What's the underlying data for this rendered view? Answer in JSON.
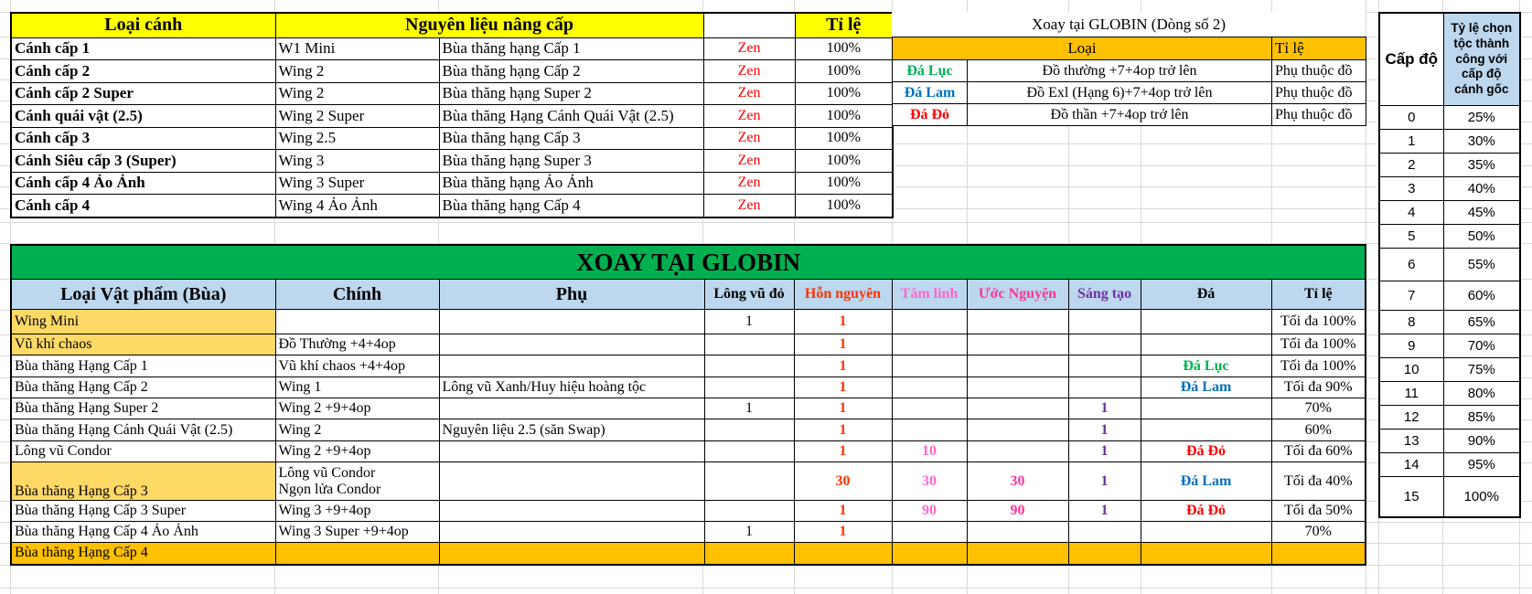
{
  "colors": {
    "yellow_header": "#FFFF00",
    "orange_header": "#FFC000",
    "green_title": "#00B050",
    "blue_header": "#BDD7EE",
    "row_highlight": "#FFD966",
    "zen_red": "#FF0000",
    "chaos_orange": "#FF3300",
    "spirit_pink": "#FF66CC",
    "wish_magenta": "#FF3399",
    "creation_purple": "#7030A0",
    "stone_green": "#00B050",
    "stone_blue": "#0070C0",
    "stone_red": "#FF0000"
  },
  "top_left_table": {
    "headers": {
      "type": "Loại cánh",
      "materials": "Nguyên liệu nâng cấp",
      "rate": "Tỉ lệ"
    },
    "rows": [
      {
        "wing": "Cánh cấp 1",
        "main": "W1 Mini",
        "charm": "Bùa thăng hạng Cấp 1",
        "currency": "Zen",
        "rate": "100%"
      },
      {
        "wing": "Cánh cấp 2",
        "main": "Wing 2",
        "charm": "Bùa thăng hạng Cấp 2",
        "currency": "Zen",
        "rate": "100%"
      },
      {
        "wing": "Cánh cấp 2 Super",
        "main": "Wing 2",
        "charm": "Bùa thăng hạng Super 2",
        "currency": "Zen",
        "rate": "100%"
      },
      {
        "wing": "Cánh quái vật (2.5)",
        "main": "Wing 2 Super",
        "charm": "Bùa thăng Hạng Cánh Quái Vật (2.5)",
        "currency": "Zen",
        "rate": "100%"
      },
      {
        "wing": "Cánh cấp 3",
        "main": "Wing 2.5",
        "charm": "Bùa thăng hạng Cấp 3",
        "currency": "Zen",
        "rate": "100%"
      },
      {
        "wing": "Cánh Siêu cấp 3 (Super)",
        "main": "Wing 3",
        "charm": "Bùa thăng hạng Super 3",
        "currency": "Zen",
        "rate": "100%"
      },
      {
        "wing": "Cánh cấp 4 Ảo Ảnh",
        "main": "Wing 3 Super",
        "charm": "Bùa thăng hạng Ảo Ảnh",
        "currency": "Zen",
        "rate": "100%"
      },
      {
        "wing": "Cánh cấp 4",
        "main": "Wing 4 Ảo Ảnh",
        "charm": "Bùa thăng hạng Cấp 4",
        "currency": "Zen",
        "rate": "100%"
      }
    ]
  },
  "top_right_table": {
    "title": "Xoay tại GLOBIN (Dòng số 2)",
    "headers": {
      "type": "Loại",
      "rate": "Tỉ lệ"
    },
    "rows": [
      {
        "stone": "Đá Lục",
        "stone_color": "#00B050",
        "requirement": "Đồ thường +7+4op trở lên",
        "rate": "Phụ thuộc đồ"
      },
      {
        "stone": "Đá Lam",
        "stone_color": "#0070C0",
        "requirement": "Đồ Exl (Hạng 6)+7+4op trở lên",
        "rate": "Phụ thuộc đồ"
      },
      {
        "stone": "Đá Đỏ",
        "stone_color": "#FF0000",
        "requirement": "Đồ thần +7+4op trở lên",
        "rate": "Phụ thuộc đồ"
      }
    ]
  },
  "level_table": {
    "headers": {
      "level": "Cấp độ",
      "rate": "Tỷ lệ chọn tộc thành công với cấp độ cánh gốc"
    },
    "rows": [
      {
        "level": "0",
        "rate": "25%"
      },
      {
        "level": "1",
        "rate": "30%"
      },
      {
        "level": "2",
        "rate": "35%"
      },
      {
        "level": "3",
        "rate": "40%"
      },
      {
        "level": "4",
        "rate": "45%"
      },
      {
        "level": "5",
        "rate": "50%"
      },
      {
        "level": "6",
        "rate": "55%"
      },
      {
        "level": "7",
        "rate": "60%"
      },
      {
        "level": "8",
        "rate": "65%"
      },
      {
        "level": "9",
        "rate": "70%"
      },
      {
        "level": "10",
        "rate": "75%"
      },
      {
        "level": "11",
        "rate": "80%"
      },
      {
        "level": "12",
        "rate": "85%"
      },
      {
        "level": "13",
        "rate": "90%"
      },
      {
        "level": "14",
        "rate": "95%"
      },
      {
        "level": "15",
        "rate": "100%"
      }
    ]
  },
  "globin_table": {
    "title": "XOAY TẠI GLOBIN",
    "headers": [
      "Loại Vật phẩm (Bùa)",
      "Chính",
      "Phụ",
      "Lông vũ đỏ",
      "Hỗn nguyên",
      "Tâm linh",
      "Ước Nguyện",
      "Sáng tạo",
      "Đá",
      "Tỉ lệ"
    ],
    "rows": [
      {
        "item": "Wing Mini",
        "highlight": true,
        "main": "",
        "sub": "",
        "red_feather": "1",
        "chaos": "1",
        "spirit": "",
        "wish": "",
        "creation": "",
        "stone": "",
        "stone_color": "",
        "rate": "Tối đa 100%"
      },
      {
        "item": "Vũ khí chaos",
        "highlight": true,
        "main": "Đồ Thường +4+4op",
        "sub": "",
        "red_feather": "",
        "chaos": "1",
        "spirit": "",
        "wish": "",
        "creation": "",
        "stone": "",
        "stone_color": "",
        "rate": "Tối đa 100%"
      },
      {
        "item": "Bùa thăng Hạng Cấp 1",
        "highlight": false,
        "main": "Vũ khí chaos +4+4op",
        "sub": "",
        "red_feather": "",
        "chaos": "1",
        "spirit": "",
        "wish": "",
        "creation": "",
        "stone": "Đá Lục",
        "stone_color": "#00B050",
        "rate": "Tối đa 100%"
      },
      {
        "item": "Bùa thăng Hạng Cấp 2",
        "highlight": false,
        "main": "Wing 1",
        "sub": "Lông vũ Xanh/Huy hiệu hoàng tộc",
        "red_feather": "",
        "chaos": "1",
        "spirit": "",
        "wish": "",
        "creation": "",
        "stone": "Đá Lam",
        "stone_color": "#0070C0",
        "rate": "Tối đa 90%"
      },
      {
        "item": "Bùa thăng Hạng Super 2",
        "highlight": false,
        "main": "Wing 2 +9+4op",
        "sub": "",
        "red_feather": "1",
        "chaos": "1",
        "spirit": "",
        "wish": "",
        "creation": "1",
        "stone": "",
        "stone_color": "",
        "rate": "70%"
      },
      {
        "item": "Bùa thăng Hạng Cánh Quái Vật (2.5)",
        "highlight": false,
        "main": "Wing 2",
        "sub": "Nguyên liệu 2.5 (săn Swap)",
        "red_feather": "",
        "chaos": "1",
        "spirit": "",
        "wish": "",
        "creation": "1",
        "stone": "",
        "stone_color": "",
        "rate": "60%"
      },
      {
        "item": "Lông vũ Condor",
        "highlight": false,
        "main": "Wing 2 +9+4op",
        "sub": "",
        "red_feather": "",
        "chaos": "1",
        "spirit": "10",
        "wish": "",
        "creation": "1",
        "stone": "Đá Đỏ",
        "stone_color": "#FF0000",
        "rate": "Tối đa 60%"
      },
      {
        "item": "Bùa thăng Hạng Cấp 3",
        "highlight": true,
        "item_valign": "bottom",
        "main": "Lông vũ Condor\nNgọn lửa Condor",
        "sub": "",
        "red_feather": "",
        "chaos": "30",
        "spirit": "30",
        "wish": "30",
        "creation": "1",
        "stone": "Đá Lam",
        "stone_color": "#0070C0",
        "rate": "Tối đa 40%"
      },
      {
        "item": "Bùa thăng Hạng Cấp 3 Super",
        "highlight": false,
        "main": "Wing 3 +9+4op",
        "sub": "",
        "red_feather": "",
        "chaos": "1",
        "spirit": "90",
        "wish": "90",
        "creation": "1",
        "stone": "Đá Đỏ",
        "stone_color": "#FF0000",
        "rate": "Tối đa 50%"
      },
      {
        "item": "Bùa thăng Hạng Cấp 4 Ảo Ảnh",
        "highlight": false,
        "main": "Wing 3 Super +9+4op",
        "sub": "",
        "red_feather": "1",
        "chaos": "1",
        "spirit": "",
        "wish": "",
        "creation": "",
        "stone": "",
        "stone_color": "",
        "rate": "70%"
      },
      {
        "item": "Bùa thăng Hạng Cấp 4",
        "highlight": false,
        "orange_row": true,
        "main": "",
        "sub": "",
        "red_feather": "",
        "chaos": "",
        "spirit": "",
        "wish": "",
        "creation": "",
        "stone": "",
        "stone_color": "",
        "rate": ""
      }
    ]
  }
}
